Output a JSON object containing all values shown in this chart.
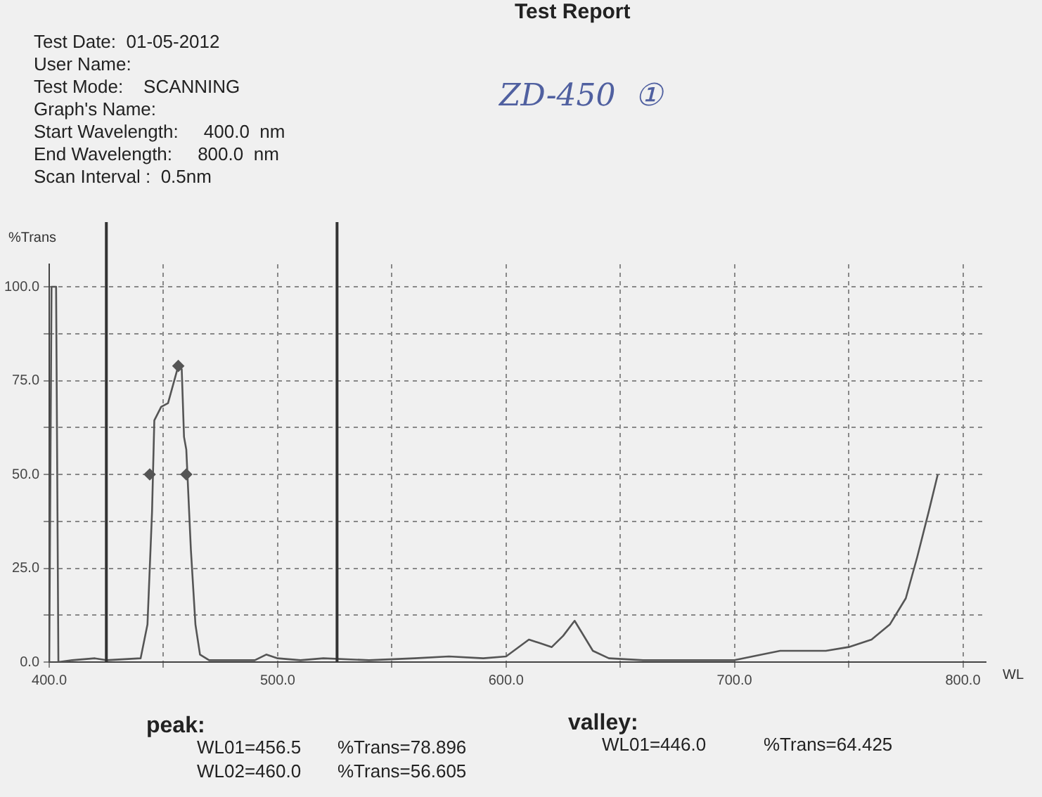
{
  "chart_data": {
    "type": "line",
    "title": "Test Report",
    "xlabel": "WL",
    "ylabel": "%Trans",
    "annotations": [
      "Test Date:  01-05-2012",
      "User Name:",
      "Test Mode:    SCANNING",
      "Graph's Name:",
      "Start Wavelength:     400.0  nm",
      "End Wavelength:     800.0  nm",
      "Scan Interval :  0.5nm",
      "ZD-450  ①",
      "peak:",
      "WL01=456.5",
      "%Trans=78.896",
      "WL02=460.0",
      "%Trans=56.605",
      "valley:",
      "WL01=446.0",
      "%Trans=64.425"
    ],
    "series": [
      {
        "type": "line",
        "color": "#555555",
        "marker": "none",
        "x": [
          400,
          401,
          403,
          404,
          410,
          420,
          425,
          440,
          443,
          445,
          446,
          449,
          452,
          456.5,
          458,
          459,
          460,
          462,
          464,
          466,
          470,
          490,
          495,
          500,
          510,
          520,
          540,
          560,
          575,
          590,
          600,
          610,
          615,
          620,
          625,
          630,
          633,
          638,
          645,
          660,
          700,
          712,
          720,
          740,
          750,
          760,
          768,
          775,
          780,
          785,
          789
        ],
        "values": [
          0,
          100,
          100,
          0,
          0.5,
          1,
          0.5,
          1,
          10,
          40,
          64.4,
          68,
          69,
          78.9,
          78,
          60,
          56.6,
          30,
          10,
          2,
          0.5,
          0.5,
          2,
          1,
          0.5,
          1,
          0.5,
          1,
          1.5,
          1,
          1.5,
          6,
          5,
          4,
          7,
          11,
          8,
          3,
          1,
          0.5,
          0.5,
          2,
          3,
          3,
          4,
          6,
          10,
          17,
          28,
          40,
          50
        ]
      },
      {
        "type": "scatter",
        "color": "#555555",
        "marker": "diamond",
        "x": [
          444,
          456.5,
          460
        ],
        "values": [
          50,
          78.9,
          50
        ]
      }
    ],
    "xlim": [
      400,
      810
    ],
    "ylim": [
      0,
      106
    ],
    "xticks": [
      {
        "value": 400,
        "label": "400.0"
      },
      {
        "value": 450,
        "label": null
      },
      {
        "value": 500,
        "label": "500.0"
      },
      {
        "value": 550,
        "label": null
      },
      {
        "value": 600,
        "label": "600.0"
      },
      {
        "value": 650,
        "label": null
      },
      {
        "value": 700,
        "label": "700.0"
      },
      {
        "value": 750,
        "label": null
      },
      {
        "value": 800,
        "label": "800.0"
      }
    ],
    "yticks": [
      {
        "value": 0,
        "label": "0.0"
      },
      {
        "value": 12.5,
        "label": null
      },
      {
        "value": 25,
        "label": "25.0"
      },
      {
        "value": 37.5,
        "label": null
      },
      {
        "value": 50,
        "label": "50.0"
      },
      {
        "value": 62.5,
        "label": null
      },
      {
        "value": 75,
        "label": "75.0"
      },
      {
        "value": 87.5,
        "label": null
      },
      {
        "value": 100,
        "label": "100.0"
      }
    ],
    "ref_lines": [
      {
        "axis": "x",
        "value": 425,
        "color": "#333333"
      },
      {
        "axis": "x",
        "value": 526,
        "color": "#333333"
      }
    ],
    "grid": true,
    "legend": false
  }
}
